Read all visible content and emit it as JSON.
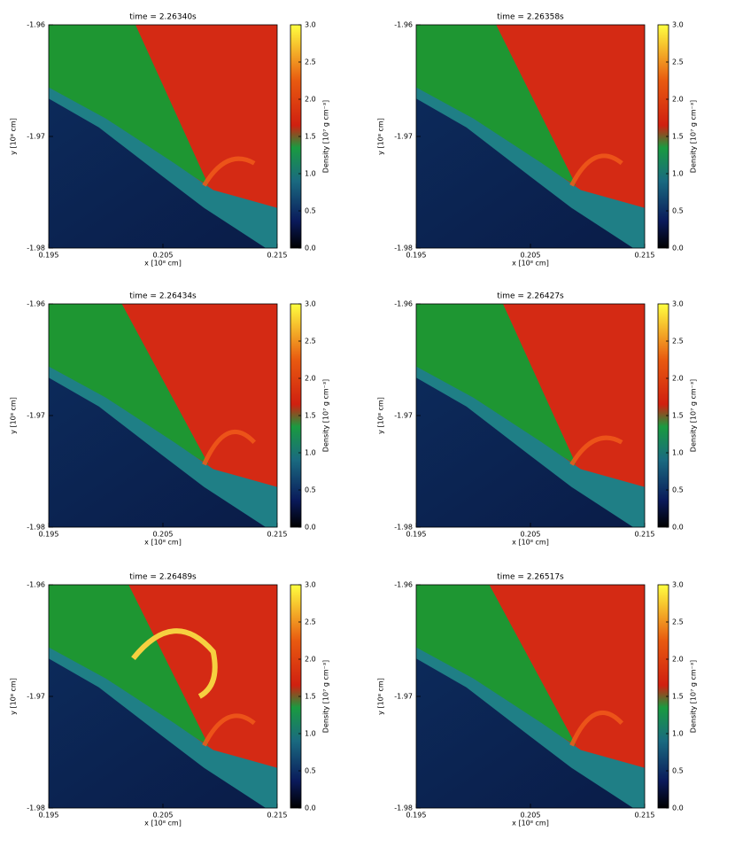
{
  "chart_data": [
    {
      "type": "heatmap",
      "title": "time = 2.26340s",
      "xlabel": "x [10⁸ cm]",
      "ylabel": "y [10⁸ cm]",
      "xlim": [
        0.195,
        0.215
      ],
      "xticks": [
        0.195,
        0.205,
        0.215
      ],
      "ylim": [
        -1.98,
        -1.96
      ],
      "yticks": [
        -1.96,
        -1.97,
        -1.98
      ],
      "colorbar": {
        "label": "Density [10⁷ g cm⁻³]",
        "lim": [
          0,
          3
        ],
        "ticks": [
          {
            "value": 0,
            "label": "0.0"
          },
          0.5,
          {
            "value": 1,
            "label": "1.0"
          },
          1.5,
          {
            "value": 2,
            "label": "2.0"
          },
          2.5,
          {
            "value": 3,
            "label": "3.0"
          }
        ]
      }
    },
    {
      "type": "heatmap",
      "title": "time = 2.26358s",
      "xlabel": "x [10⁸ cm]",
      "ylabel": "y [10⁸ cm]",
      "xlim": [
        0.195,
        0.215
      ],
      "xticks": [
        0.195,
        0.205,
        0.215
      ],
      "ylim": [
        -1.98,
        -1.96
      ],
      "yticks": [
        -1.96,
        -1.97,
        -1.98
      ],
      "colorbar": {
        "label": "Density [10⁷ g cm⁻³]",
        "lim": [
          0,
          3
        ],
        "ticks": [
          {
            "value": 0,
            "label": "0.0"
          },
          0.5,
          {
            "value": 1,
            "label": "1.0"
          },
          1.5,
          {
            "value": 2,
            "label": "2.0"
          },
          2.5,
          {
            "value": 3,
            "label": "3.0"
          }
        ]
      }
    },
    {
      "type": "heatmap",
      "title": "time = 2.26434s",
      "xlabel": "x [10⁸ cm]",
      "ylabel": "y [10⁸ cm]",
      "xlim": [
        0.195,
        0.215
      ],
      "xticks": [
        0.195,
        0.205,
        0.215
      ],
      "ylim": [
        -1.98,
        -1.96
      ],
      "yticks": [
        -1.96,
        -1.97,
        -1.98
      ],
      "colorbar": {
        "label": "Density [10⁷ g cm⁻³]",
        "lim": [
          0,
          3
        ],
        "ticks": [
          {
            "value": 0,
            "label": "0.0"
          },
          0.5,
          {
            "value": 1,
            "label": "1.0"
          },
          1.5,
          {
            "value": 2,
            "label": "2.0"
          },
          2.5,
          {
            "value": 3,
            "label": "3.0"
          }
        ]
      }
    },
    {
      "type": "heatmap",
      "title": "time = 2.26427s",
      "xlabel": "x [10⁸ cm]",
      "ylabel": "y [10⁸ cm]",
      "xlim": [
        0.195,
        0.215
      ],
      "xticks": [
        0.195,
        0.205,
        0.215
      ],
      "ylim": [
        -1.98,
        -1.96
      ],
      "yticks": [
        -1.96,
        -1.97,
        -1.98
      ],
      "colorbar": {
        "label": "Density [10⁷ g cm⁻³]",
        "lim": [
          0,
          3
        ],
        "ticks": [
          {
            "value": 0,
            "label": "0.0"
          },
          0.5,
          {
            "value": 1,
            "label": "1.0"
          },
          1.5,
          {
            "value": 2,
            "label": "2.0"
          },
          2.5,
          {
            "value": 3,
            "label": "3.0"
          }
        ]
      }
    },
    {
      "type": "heatmap",
      "title": "time = 2.26489s",
      "xlabel": "x [10⁸ cm]",
      "ylabel": "y [10⁸ cm]",
      "xlim": [
        0.195,
        0.215
      ],
      "xticks": [
        0.195,
        0.205,
        0.215
      ],
      "ylim": [
        -1.98,
        -1.96
      ],
      "yticks": [
        -1.96,
        -1.97,
        -1.98
      ],
      "colorbar": {
        "label": "Density [10⁷ g cm⁻³]",
        "lim": [
          0,
          3
        ],
        "ticks": [
          {
            "value": 0,
            "label": "0.0"
          },
          0.5,
          {
            "value": 1,
            "label": "1.0"
          },
          1.5,
          {
            "value": 2,
            "label": "2.0"
          },
          2.5,
          {
            "value": 3,
            "label": "3.0"
          }
        ]
      }
    },
    {
      "type": "heatmap",
      "title": "time = 2.26517s",
      "xlabel": "x [10⁸ cm]",
      "ylabel": "y [10⁸ cm]",
      "xlim": [
        0.195,
        0.215
      ],
      "xticks": [
        0.195,
        0.205,
        0.215
      ],
      "ylim": [
        -1.98,
        -1.96
      ],
      "yticks": [
        -1.96,
        -1.97,
        -1.98
      ],
      "colorbar": {
        "label": "Density [10⁷ g cm⁻³]",
        "lim": [
          0,
          3
        ],
        "ticks": [
          {
            "value": 0,
            "label": "0.0"
          },
          0.5,
          {
            "value": 1,
            "label": "1.0"
          },
          1.5,
          {
            "value": 2,
            "label": "2.0"
          },
          2.5,
          {
            "value": 3,
            "label": "3.0"
          }
        ]
      }
    }
  ]
}
